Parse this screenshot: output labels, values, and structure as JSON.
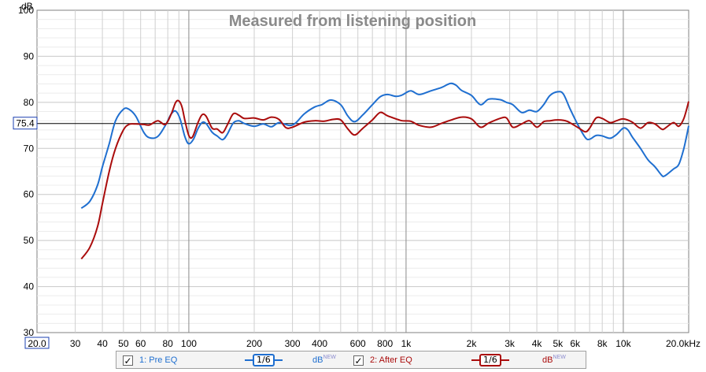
{
  "chart_data": {
    "type": "line",
    "title": "Measured from listening position",
    "ylabel": "dB",
    "xlabel": "",
    "x_unit": "kHz",
    "x_scale": "log",
    "xlim": [
      20,
      20000
    ],
    "ylim": [
      30,
      100
    ],
    "grid": true,
    "reference_line": {
      "value": 75.4,
      "label": "75.4"
    },
    "x_start_label": "20.0",
    "x_tick_labels": [
      {
        "value": 30,
        "label": "30"
      },
      {
        "value": 40,
        "label": "40"
      },
      {
        "value": 50,
        "label": "50"
      },
      {
        "value": 60,
        "label": "60"
      },
      {
        "value": 80,
        "label": "80"
      },
      {
        "value": 100,
        "label": "100"
      },
      {
        "value": 200,
        "label": "200"
      },
      {
        "value": 300,
        "label": "300"
      },
      {
        "value": 400,
        "label": "400"
      },
      {
        "value": 600,
        "label": "600"
      },
      {
        "value": 800,
        "label": "800"
      },
      {
        "value": 1000,
        "label": "1k"
      },
      {
        "value": 2000,
        "label": "2k"
      },
      {
        "value": 3000,
        "label": "3k"
      },
      {
        "value": 4000,
        "label": "4k"
      },
      {
        "value": 5000,
        "label": "5k"
      },
      {
        "value": 6000,
        "label": "6k"
      },
      {
        "value": 8000,
        "label": "8k"
      },
      {
        "value": 10000,
        "label": "10k"
      },
      {
        "value": 20000,
        "label": "20.0kHz"
      }
    ],
    "y_tick_labels": [
      {
        "value": 30,
        "label": "30"
      },
      {
        "value": 40,
        "label": "40"
      },
      {
        "value": 50,
        "label": "50"
      },
      {
        "value": 60,
        "label": "60"
      },
      {
        "value": 70,
        "label": "70"
      },
      {
        "value": 80,
        "label": "80"
      },
      {
        "value": 90,
        "label": "90"
      },
      {
        "value": 100,
        "label": "100"
      }
    ],
    "series": [
      {
        "name": "1: Pre EQ",
        "color": "#1f6fd0",
        "smoothing": "1/6",
        "unit_label": "dB",
        "unit_sup": "NEW",
        "points": [
          [
            32,
            57
          ],
          [
            35,
            58.5
          ],
          [
            38,
            62
          ],
          [
            40,
            66
          ],
          [
            43,
            71
          ],
          [
            46,
            76
          ],
          [
            50,
            78.5
          ],
          [
            53,
            78.5
          ],
          [
            57,
            77
          ],
          [
            62,
            73.5
          ],
          [
            66,
            72.3
          ],
          [
            72,
            72.6
          ],
          [
            78,
            75
          ],
          [
            83,
            77.5
          ],
          [
            87,
            78.1
          ],
          [
            91,
            76.5
          ],
          [
            96,
            72.5
          ],
          [
            100,
            71
          ],
          [
            105,
            72
          ],
          [
            110,
            74.2
          ],
          [
            115,
            75.6
          ],
          [
            120,
            75.4
          ],
          [
            128,
            73.5
          ],
          [
            135,
            72.7
          ],
          [
            143,
            71.9
          ],
          [
            150,
            73
          ],
          [
            160,
            75.5
          ],
          [
            170,
            76
          ],
          [
            180,
            75.4
          ],
          [
            200,
            74.8
          ],
          [
            220,
            75.3
          ],
          [
            240,
            74.7
          ],
          [
            260,
            75.6
          ],
          [
            290,
            75
          ],
          [
            310,
            75.5
          ],
          [
            340,
            77.5
          ],
          [
            380,
            79
          ],
          [
            410,
            79.5
          ],
          [
            450,
            80.5
          ],
          [
            500,
            79.5
          ],
          [
            540,
            77
          ],
          [
            580,
            75.8
          ],
          [
            630,
            77.2
          ],
          [
            700,
            79.5
          ],
          [
            760,
            81.2
          ],
          [
            820,
            81.7
          ],
          [
            900,
            81.3
          ],
          [
            960,
            81.6
          ],
          [
            1050,
            82.5
          ],
          [
            1150,
            81.7
          ],
          [
            1300,
            82.5
          ],
          [
            1450,
            83.2
          ],
          [
            1600,
            84.1
          ],
          [
            1700,
            83.7
          ],
          [
            1800,
            82.6
          ],
          [
            2000,
            81.5
          ],
          [
            2200,
            79.5
          ],
          [
            2400,
            80.7
          ],
          [
            2700,
            80.6
          ],
          [
            2900,
            80
          ],
          [
            3100,
            79.5
          ],
          [
            3400,
            77.8
          ],
          [
            3700,
            78.3
          ],
          [
            4000,
            78.0
          ],
          [
            4300,
            79.5
          ],
          [
            4600,
            81.5
          ],
          [
            5000,
            82.3
          ],
          [
            5300,
            81.8
          ],
          [
            5700,
            78.5
          ],
          [
            6200,
            75
          ],
          [
            6700,
            72.3
          ],
          [
            7000,
            72
          ],
          [
            7500,
            72.8
          ],
          [
            8000,
            72.7
          ],
          [
            8700,
            72.2
          ],
          [
            9300,
            73
          ],
          [
            10000,
            74.4
          ],
          [
            10500,
            74
          ],
          [
            11000,
            72.5
          ],
          [
            12000,
            70
          ],
          [
            13000,
            67.5
          ],
          [
            14000,
            66
          ],
          [
            15000,
            64.2
          ],
          [
            15500,
            64
          ],
          [
            17000,
            65.5
          ],
          [
            18000,
            66.5
          ],
          [
            19000,
            70
          ],
          [
            20000,
            74.9
          ]
        ]
      },
      {
        "name": "2: After EQ",
        "color": "#aa0c0c",
        "smoothing": "1/6",
        "unit_label": "dB",
        "unit_sup": "NEW",
        "points": [
          [
            32,
            46
          ],
          [
            35,
            48.5
          ],
          [
            38,
            53
          ],
          [
            40,
            58
          ],
          [
            43,
            65
          ],
          [
            46,
            70
          ],
          [
            50,
            74
          ],
          [
            53,
            75.2
          ],
          [
            57,
            75.3
          ],
          [
            62,
            75.2
          ],
          [
            66,
            75.1
          ],
          [
            72,
            76
          ],
          [
            78,
            75.2
          ],
          [
            83,
            77.5
          ],
          [
            87,
            80
          ],
          [
            90,
            80.3
          ],
          [
            93,
            79
          ],
          [
            96,
            76
          ],
          [
            100,
            72.8
          ],
          [
            104,
            72.5
          ],
          [
            110,
            75.5
          ],
          [
            115,
            77.3
          ],
          [
            120,
            77
          ],
          [
            128,
            74.4
          ],
          [
            135,
            74.2
          ],
          [
            143,
            73.4
          ],
          [
            150,
            75
          ],
          [
            160,
            77.5
          ],
          [
            170,
            77.2
          ],
          [
            180,
            76.5
          ],
          [
            200,
            76.6
          ],
          [
            220,
            76.2
          ],
          [
            240,
            76.8
          ],
          [
            260,
            76.3
          ],
          [
            280,
            74.5
          ],
          [
            300,
            74.6
          ],
          [
            340,
            75.7
          ],
          [
            380,
            76
          ],
          [
            420,
            75.9
          ],
          [
            460,
            76.3
          ],
          [
            500,
            76.2
          ],
          [
            540,
            74.2
          ],
          [
            580,
            72.9
          ],
          [
            630,
            74.3
          ],
          [
            700,
            76.2
          ],
          [
            760,
            77.8
          ],
          [
            820,
            77.1
          ],
          [
            900,
            76.4
          ],
          [
            960,
            76
          ],
          [
            1050,
            75.9
          ],
          [
            1150,
            75
          ],
          [
            1300,
            74.6
          ],
          [
            1450,
            75.4
          ],
          [
            1600,
            76.1
          ],
          [
            1800,
            76.8
          ],
          [
            2000,
            76.4
          ],
          [
            2200,
            74.6
          ],
          [
            2400,
            75.5
          ],
          [
            2700,
            76.5
          ],
          [
            2900,
            76.6
          ],
          [
            3100,
            74.6
          ],
          [
            3400,
            75.3
          ],
          [
            3700,
            76
          ],
          [
            4000,
            74.6
          ],
          [
            4300,
            75.8
          ],
          [
            4600,
            76
          ],
          [
            5000,
            76.2
          ],
          [
            5500,
            75.9
          ],
          [
            6200,
            74.5
          ],
          [
            6700,
            73.6
          ],
          [
            7000,
            74.4
          ],
          [
            7500,
            76.6
          ],
          [
            8000,
            76.5
          ],
          [
            8700,
            75.6
          ],
          [
            9300,
            76
          ],
          [
            10000,
            76.4
          ],
          [
            11000,
            75.7
          ],
          [
            12000,
            74.4
          ],
          [
            13000,
            75.6
          ],
          [
            14000,
            75.3
          ],
          [
            15000,
            74.2
          ],
          [
            15500,
            74.3
          ],
          [
            17000,
            75.6
          ],
          [
            18000,
            74.8
          ],
          [
            19000,
            76.5
          ],
          [
            20000,
            80.2
          ]
        ]
      }
    ]
  }
}
